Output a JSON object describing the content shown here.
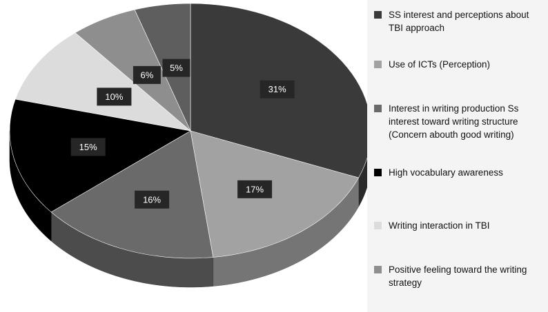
{
  "chart_data": {
    "type": "pie",
    "title": "",
    "legend_position": "right",
    "start_angle": "12 o'clock",
    "direction": "clockwise",
    "style": "3d",
    "slices": [
      {
        "label": "SS interest and perceptions about TBI approach",
        "value": 31,
        "value_label": "31%",
        "color": "#3a3a3a"
      },
      {
        "label": "Use of ICTs (Perception)",
        "value": 17,
        "value_label": "17%",
        "color": "#a2a2a2"
      },
      {
        "label": "Interest in writing production Ss interest toward writing structure (Concern abouth good writing)",
        "value": 16,
        "value_label": "16%",
        "color": "#6a6a6a"
      },
      {
        "label": "High vocabulary awareness",
        "value": 15,
        "value_label": "15%",
        "color": "#000000"
      },
      {
        "label": "Writing interaction in TBI",
        "value": 10,
        "value_label": "10%",
        "color": "#dcdcdc"
      },
      {
        "label": "Positive feeling toward the writing strategy",
        "value": 6,
        "value_label": "6%",
        "color": "#8e8e8e"
      },
      {
        "label": "",
        "value": 5,
        "value_label": "5%",
        "color": "#5e5e5e"
      }
    ],
    "legend": [
      {
        "label": "SS interest and perceptions about TBI approach",
        "color": "#3a3a3a"
      },
      {
        "label": "Use of ICTs (Perception)",
        "color": "#a2a2a2"
      },
      {
        "label": "Interest in writing production Ss interest toward writing structure (Concern abouth good writing)",
        "color": "#6a6a6a"
      },
      {
        "label": "High vocabulary awareness",
        "color": "#000000"
      },
      {
        "label": "Writing interaction in TBI",
        "color": "#dcdcdc"
      },
      {
        "label": "Positive feeling toward the writing strategy",
        "color": "#8e8e8e"
      }
    ]
  }
}
